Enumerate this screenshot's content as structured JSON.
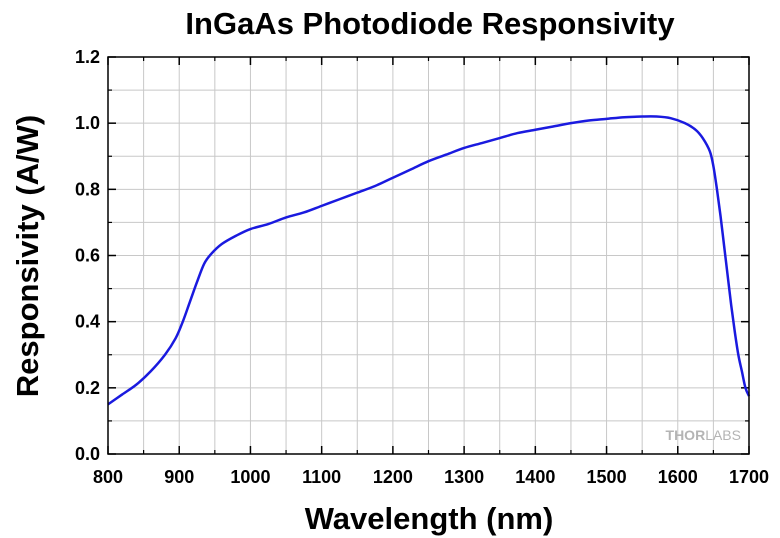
{
  "chart_data": {
    "type": "line",
    "title": "InGaAs Photodiode Responsivity",
    "xlabel": "Wavelength (nm)",
    "ylabel": "Responsivity (A/W)",
    "xlim": [
      800,
      1700
    ],
    "ylim": [
      0.0,
      1.2
    ],
    "xticks": [
      800,
      900,
      1000,
      1100,
      1200,
      1300,
      1400,
      1500,
      1600,
      1700
    ],
    "yticks": [
      0.0,
      0.2,
      0.4,
      0.6,
      0.8,
      1.0,
      1.2
    ],
    "xtick_labels": [
      "800",
      "900",
      "1000",
      "1100",
      "1200",
      "1300",
      "1400",
      "1500",
      "1600",
      "1700"
    ],
    "ytick_labels": [
      "0.0",
      "0.2",
      "0.4",
      "0.6",
      "0.8",
      "1.0",
      "1.2"
    ],
    "grid": true,
    "series": [
      {
        "color": "#1a1adf",
        "x": [
          800,
          820,
          840,
          860,
          880,
          895,
          905,
          915,
          925,
          935,
          945,
          960,
          980,
          1000,
          1025,
          1050,
          1075,
          1100,
          1125,
          1150,
          1175,
          1200,
          1225,
          1250,
          1275,
          1300,
          1325,
          1350,
          1375,
          1400,
          1425,
          1450,
          1475,
          1500,
          1525,
          1550,
          1570,
          1590,
          1610,
          1625,
          1635,
          1645,
          1650,
          1655,
          1660,
          1665,
          1670,
          1675,
          1680,
          1685,
          1690,
          1695,
          1700
        ],
        "y": [
          0.15,
          0.18,
          0.21,
          0.25,
          0.3,
          0.35,
          0.4,
          0.46,
          0.52,
          0.575,
          0.605,
          0.635,
          0.66,
          0.68,
          0.695,
          0.715,
          0.73,
          0.75,
          0.77,
          0.79,
          0.81,
          0.835,
          0.86,
          0.885,
          0.905,
          0.925,
          0.94,
          0.955,
          0.97,
          0.98,
          0.99,
          1.0,
          1.008,
          1.013,
          1.018,
          1.02,
          1.02,
          1.015,
          1.0,
          0.98,
          0.955,
          0.915,
          0.87,
          0.8,
          0.72,
          0.63,
          0.54,
          0.45,
          0.37,
          0.3,
          0.25,
          0.2,
          0.175
        ]
      }
    ]
  },
  "watermark": {
    "thor": "THOR",
    "labs": "LABS"
  }
}
